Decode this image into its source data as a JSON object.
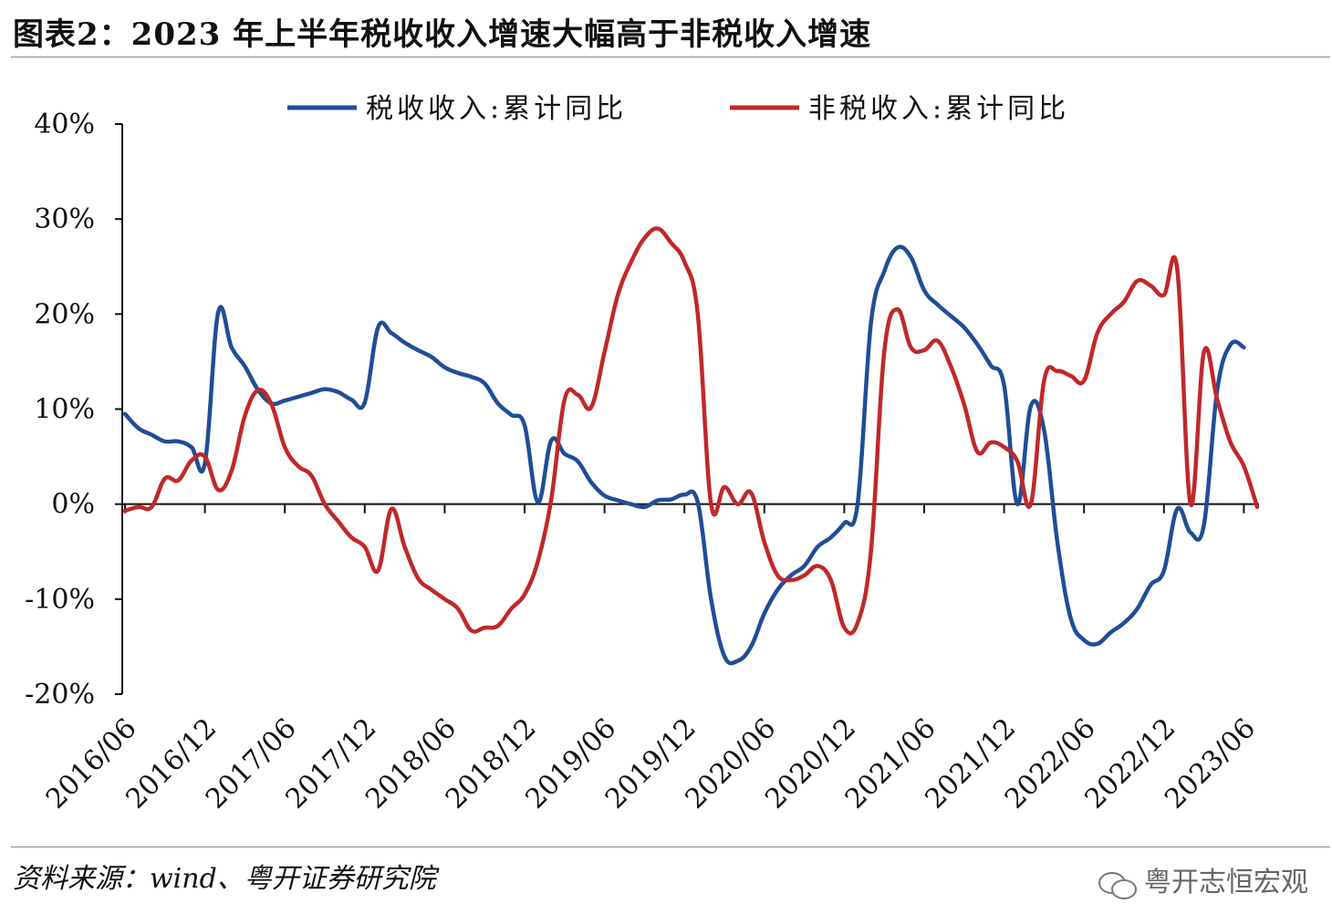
{
  "title": "图表2：2023 年上半年税收收入增速大幅高于非税收入增速",
  "source": "资料来源：wind、粤开证券研究院",
  "watermark": "粤开志恒宏观",
  "watermark_icon": "wechat-icon",
  "chart_data": {
    "type": "line",
    "title": "图表2：2023 年上半年税收收入增速大幅高于非税收入增速",
    "xlabel": "",
    "ylabel": "",
    "ylim": [
      -20,
      40
    ],
    "y_ticks": [
      "-20%",
      "-10%",
      "0%",
      "10%",
      "20%",
      "30%",
      "40%"
    ],
    "x_tick_labels": [
      "2016/06",
      "2016/12",
      "2017/06",
      "2017/12",
      "2018/06",
      "2018/12",
      "2019/06",
      "2019/12",
      "2020/06",
      "2020/12",
      "2021/06",
      "2021/12",
      "2022/06",
      "2022/12",
      "2023/06"
    ],
    "legend_position": "top",
    "grid": false,
    "series": [
      {
        "name": "税收收入:累计同比",
        "color": "#1f4e96",
        "points": [
          [
            "2016/06",
            9.5
          ],
          [
            "2016/07",
            8.0
          ],
          [
            "2016/08",
            7.3
          ],
          [
            "2016/09",
            6.6
          ],
          [
            "2016/10",
            6.6
          ],
          [
            "2016/11",
            6.0
          ],
          [
            "2016/12",
            4.3
          ],
          [
            "2017/01",
            20.2
          ],
          [
            "2017/02",
            16.5
          ],
          [
            "2017/03",
            14.5
          ],
          [
            "2017/04",
            12.0
          ],
          [
            "2017/05",
            10.6
          ],
          [
            "2017/06",
            10.9
          ],
          [
            "2017/07",
            11.3
          ],
          [
            "2017/08",
            11.7
          ],
          [
            "2017/09",
            12.1
          ],
          [
            "2017/10",
            11.8
          ],
          [
            "2017/11",
            11.0
          ],
          [
            "2017/12",
            10.7
          ],
          [
            "2018/01",
            18.6
          ],
          [
            "2018/02",
            18.0
          ],
          [
            "2018/03",
            17.0
          ],
          [
            "2018/04",
            16.2
          ],
          [
            "2018/05",
            15.5
          ],
          [
            "2018/06",
            14.4
          ],
          [
            "2018/07",
            13.8
          ],
          [
            "2018/08",
            13.4
          ],
          [
            "2018/09",
            12.7
          ],
          [
            "2018/10",
            10.6
          ],
          [
            "2018/11",
            9.4
          ],
          [
            "2018/12",
            8.3
          ],
          [
            "2019/01",
            0.2
          ],
          [
            "2019/02",
            6.7
          ],
          [
            "2019/03",
            5.3
          ],
          [
            "2019/04",
            4.5
          ],
          [
            "2019/05",
            2.3
          ],
          [
            "2019/06",
            0.9
          ],
          [
            "2019/07",
            0.4
          ],
          [
            "2019/08",
            0.0
          ],
          [
            "2019/09",
            -0.3
          ],
          [
            "2019/10",
            0.4
          ],
          [
            "2019/11",
            0.5
          ],
          [
            "2019/12",
            1.0
          ],
          [
            "2020/01",
            0.2
          ],
          [
            "2020/02",
            -10.0
          ],
          [
            "2020/03",
            -16.0
          ],
          [
            "2020/04",
            -16.5
          ],
          [
            "2020/05",
            -15.0
          ],
          [
            "2020/06",
            -11.5
          ],
          [
            "2020/07",
            -9.0
          ],
          [
            "2020/08",
            -7.5
          ],
          [
            "2020/09",
            -6.5
          ],
          [
            "2020/10",
            -4.5
          ],
          [
            "2020/11",
            -3.5
          ],
          [
            "2020/12",
            -2.0
          ],
          [
            "2021/01",
            0.0
          ],
          [
            "2021/02",
            19.0
          ],
          [
            "2021/03",
            24.5
          ],
          [
            "2021/04",
            27.0
          ],
          [
            "2021/05",
            26.0
          ],
          [
            "2021/06",
            22.5
          ],
          [
            "2021/07",
            21.0
          ],
          [
            "2021/08",
            19.8
          ],
          [
            "2021/09",
            18.6
          ],
          [
            "2021/10",
            16.8
          ],
          [
            "2021/11",
            14.6
          ],
          [
            "2021/12",
            12.5
          ],
          [
            "2022/01",
            0.0
          ],
          [
            "2022/02",
            10.3
          ],
          [
            "2022/03",
            7.8
          ],
          [
            "2022/04",
            -4.0
          ],
          [
            "2022/05",
            -12.0
          ],
          [
            "2022/06",
            -14.3
          ],
          [
            "2022/07",
            -14.7
          ],
          [
            "2022/08",
            -13.5
          ],
          [
            "2022/09",
            -12.5
          ],
          [
            "2022/10",
            -11.0
          ],
          [
            "2022/11",
            -8.5
          ],
          [
            "2022/12",
            -7.0
          ],
          [
            "2023/01",
            -0.5
          ],
          [
            "2023/02",
            -3.0
          ],
          [
            "2023/03",
            -2.2
          ],
          [
            "2023/04",
            12.0
          ],
          [
            "2023/05",
            16.8
          ],
          [
            "2023/06",
            16.5
          ]
        ]
      },
      {
        "name": "非税收入:累计同比",
        "color": "#c0282a",
        "points": [
          [
            "2016/06",
            -0.7
          ],
          [
            "2016/07",
            -0.3
          ],
          [
            "2016/08",
            -0.3
          ],
          [
            "2016/09",
            2.7
          ],
          [
            "2016/10",
            2.5
          ],
          [
            "2016/11",
            4.6
          ],
          [
            "2016/12",
            5.0
          ],
          [
            "2017/01",
            1.5
          ],
          [
            "2017/02",
            3.5
          ],
          [
            "2017/03",
            9.3
          ],
          [
            "2017/04",
            12.0
          ],
          [
            "2017/05",
            10.5
          ],
          [
            "2017/06",
            6.0
          ],
          [
            "2017/07",
            4.0
          ],
          [
            "2017/08",
            3.0
          ],
          [
            "2017/09",
            0.0
          ],
          [
            "2017/10",
            -1.8
          ],
          [
            "2017/11",
            -3.5
          ],
          [
            "2017/12",
            -4.5
          ],
          [
            "2018/01",
            -7.0
          ],
          [
            "2018/02",
            -0.5
          ],
          [
            "2018/03",
            -4.5
          ],
          [
            "2018/04",
            -7.8
          ],
          [
            "2018/05",
            -9.0
          ],
          [
            "2018/06",
            -10.0
          ],
          [
            "2018/07",
            -11.0
          ],
          [
            "2018/08",
            -13.3
          ],
          [
            "2018/09",
            -13.0
          ],
          [
            "2018/10",
            -12.8
          ],
          [
            "2018/11",
            -11.0
          ],
          [
            "2018/12",
            -9.5
          ],
          [
            "2019/01",
            -6.0
          ],
          [
            "2019/02",
            0.5
          ],
          [
            "2019/03",
            11.0
          ],
          [
            "2019/04",
            11.5
          ],
          [
            "2019/05",
            10.2
          ],
          [
            "2019/06",
            16.0
          ],
          [
            "2019/07",
            22.0
          ],
          [
            "2019/08",
            25.5
          ],
          [
            "2019/09",
            28.0
          ],
          [
            "2019/10",
            29.0
          ],
          [
            "2019/11",
            27.5
          ],
          [
            "2019/12",
            25.5
          ],
          [
            "2020/01",
            20.0
          ],
          [
            "2020/02",
            0.0
          ],
          [
            "2020/03",
            1.8
          ],
          [
            "2020/04",
            0.0
          ],
          [
            "2020/05",
            1.2
          ],
          [
            "2020/06",
            -4.0
          ],
          [
            "2020/07",
            -7.5
          ],
          [
            "2020/08",
            -8.0
          ],
          [
            "2020/09",
            -7.5
          ],
          [
            "2020/10",
            -6.5
          ],
          [
            "2020/11",
            -8.0
          ],
          [
            "2020/12",
            -13.0
          ],
          [
            "2021/01",
            -12.5
          ],
          [
            "2021/02",
            -5.0
          ],
          [
            "2021/03",
            16.0
          ],
          [
            "2021/04",
            20.5
          ],
          [
            "2021/05",
            16.5
          ],
          [
            "2021/06",
            16.2
          ],
          [
            "2021/07",
            17.2
          ],
          [
            "2021/08",
            14.5
          ],
          [
            "2021/09",
            10.5
          ],
          [
            "2021/10",
            5.5
          ],
          [
            "2021/11",
            6.5
          ],
          [
            "2021/12",
            6.0
          ],
          [
            "2022/01",
            4.5
          ],
          [
            "2022/02",
            0.0
          ],
          [
            "2022/03",
            13.0
          ],
          [
            "2022/04",
            14.0
          ],
          [
            "2022/05",
            13.5
          ],
          [
            "2022/06",
            13.0
          ],
          [
            "2022/07",
            18.0
          ],
          [
            "2022/08",
            20.0
          ],
          [
            "2022/09",
            21.3
          ],
          [
            "2022/10",
            23.5
          ],
          [
            "2022/11",
            23.0
          ],
          [
            "2022/12",
            22.0
          ],
          [
            "2023/01",
            24.7
          ],
          [
            "2023/02",
            0.0
          ],
          [
            "2023/03",
            16.0
          ],
          [
            "2023/04",
            11.0
          ],
          [
            "2023/05",
            6.5
          ],
          [
            "2023/06",
            4.0
          ],
          [
            "2023/07",
            -0.3
          ]
        ]
      }
    ]
  }
}
